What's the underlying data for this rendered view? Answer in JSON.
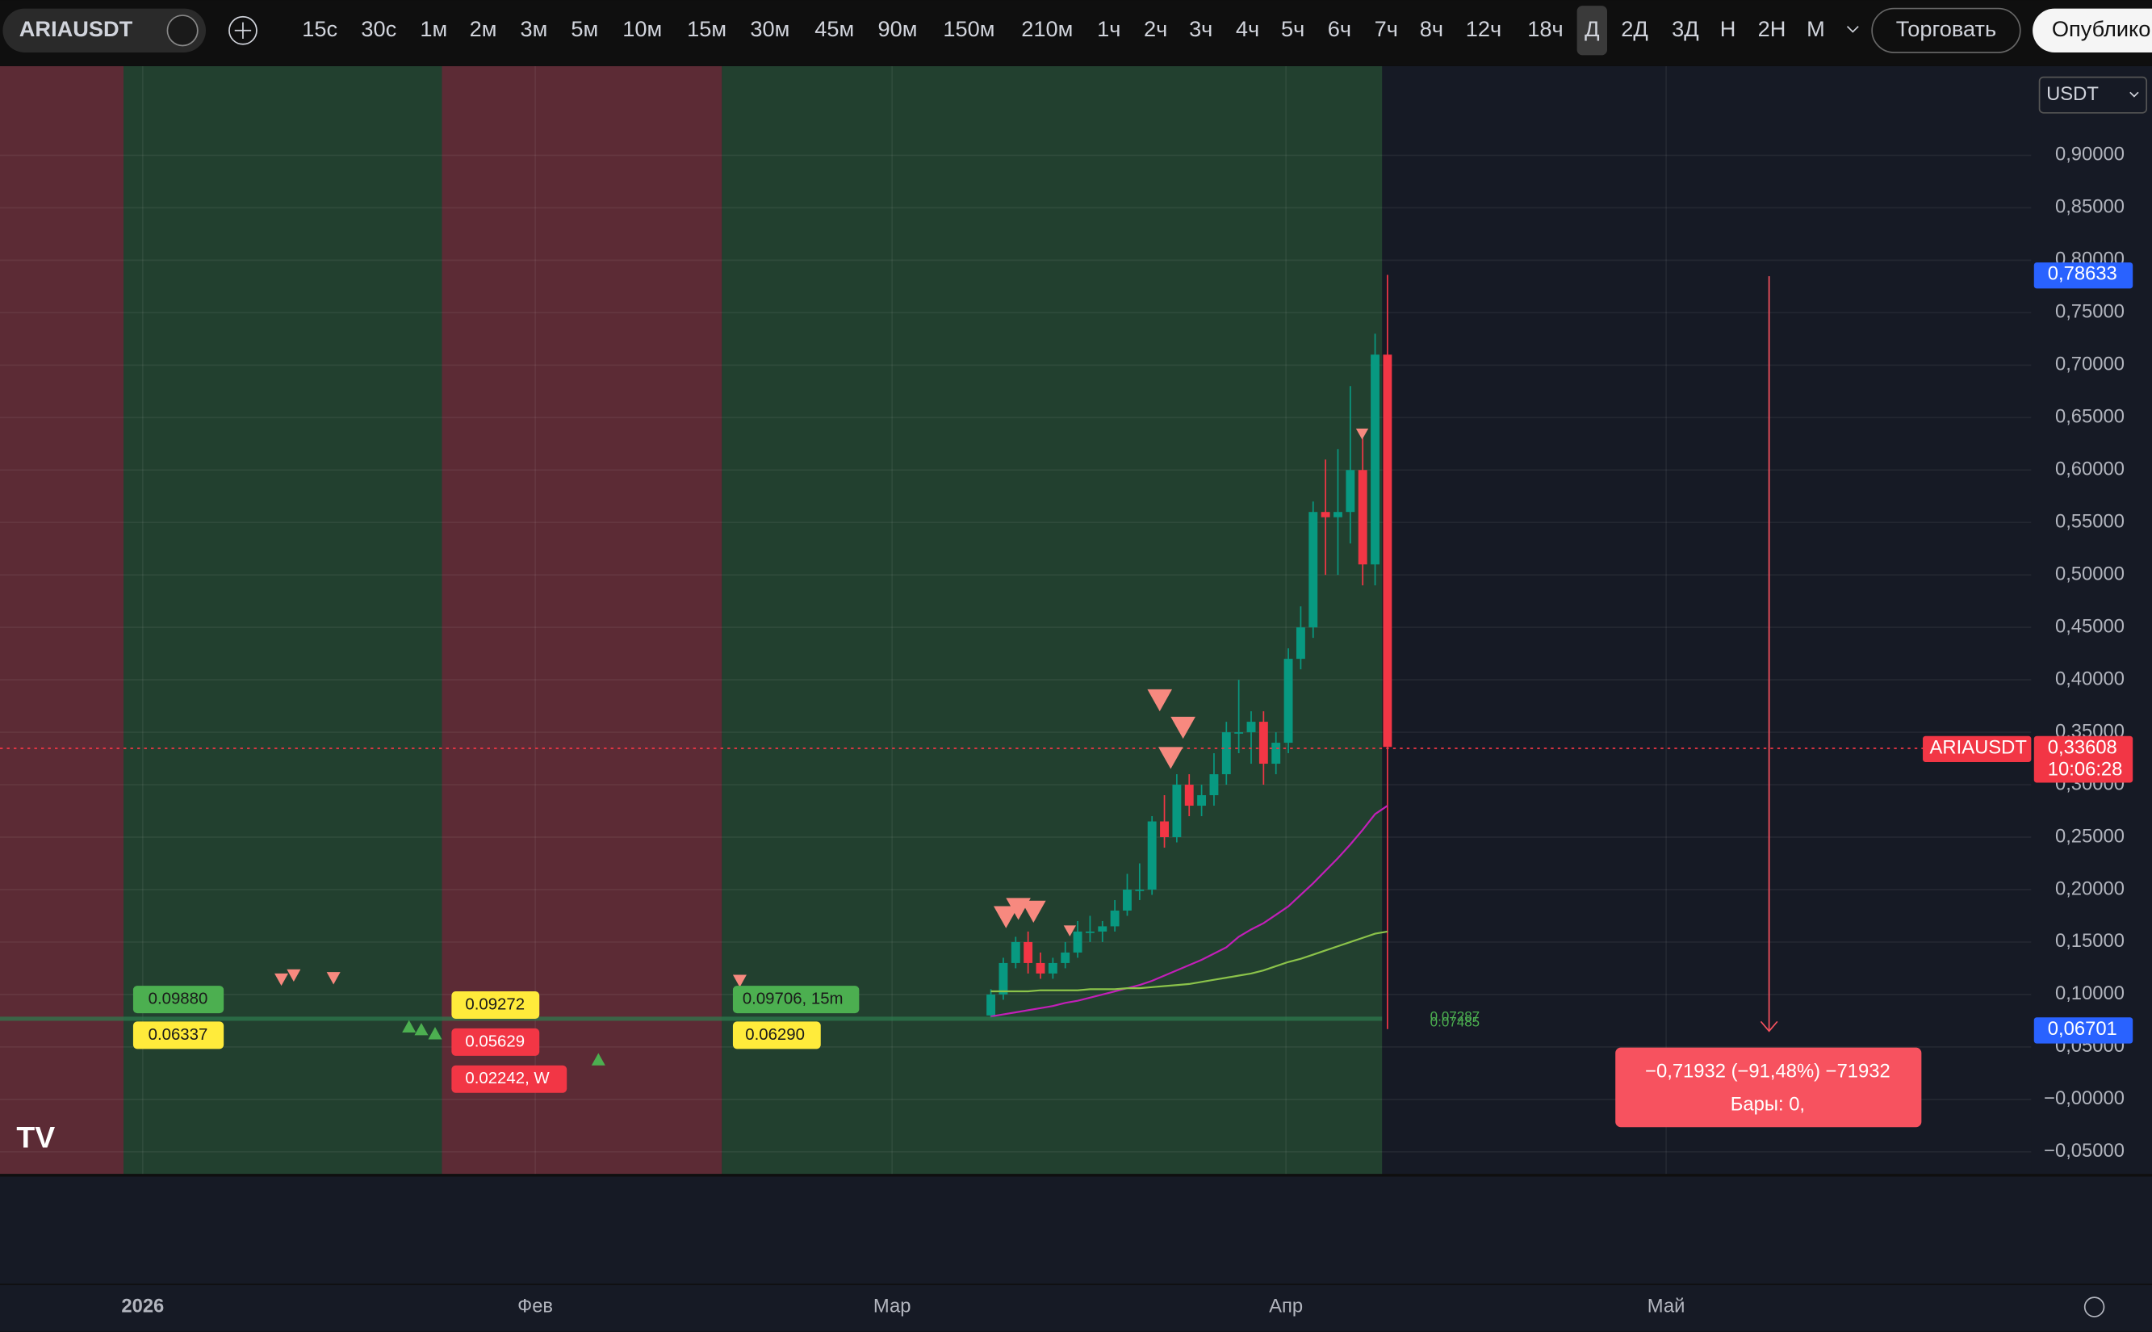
{
  "toolbar": {
    "symbol": "ARIAUSDT",
    "timeframes": [
      "15с",
      "30с",
      "1м",
      "2м",
      "3м",
      "5м",
      "10м",
      "15м",
      "30м",
      "45м",
      "90м",
      "150м",
      "210м",
      "1ч",
      "2ч",
      "3ч",
      "4ч",
      "5ч",
      "6ч",
      "7ч",
      "8ч",
      "12ч",
      "18ч",
      "Д",
      "2Д",
      "3Д",
      "Н",
      "2Н",
      "М"
    ],
    "trade": "Торговать",
    "publish": "Опублико"
  },
  "chart": {
    "currency": "USDT",
    "ylim": [
      -0.071,
      0.985
    ],
    "price_ticks": [
      {
        "value": 0.9,
        "label": "0,90000"
      },
      {
        "value": 0.85,
        "label": "0,85000"
      },
      {
        "value": 0.8,
        "label": "0,80000"
      },
      {
        "value": 0.75,
        "label": "0,75000"
      },
      {
        "value": 0.7,
        "label": "0,70000"
      },
      {
        "value": 0.65,
        "label": "0,65000"
      },
      {
        "value": 0.6,
        "label": "0,60000"
      },
      {
        "value": 0.55,
        "label": "0,55000"
      },
      {
        "value": 0.5,
        "label": "0,50000"
      },
      {
        "value": 0.45,
        "label": "0,45000"
      },
      {
        "value": 0.4,
        "label": "0,40000"
      },
      {
        "value": 0.35,
        "label": "0,35000"
      },
      {
        "value": 0.3,
        "label": "0,30000"
      },
      {
        "value": 0.25,
        "label": "0,25000"
      },
      {
        "value": 0.2,
        "label": "0,20000"
      },
      {
        "value": 0.15,
        "label": "0,15000"
      },
      {
        "value": 0.1,
        "label": "0,10000"
      },
      {
        "value": 0.05,
        "label": "0,05000"
      },
      {
        "value": 0,
        "label": "−0,00000"
      },
      {
        "value": -0.05,
        "label": "−0,05000"
      }
    ],
    "time_labels": [
      "2026",
      "Фев",
      "Мар",
      "Апр",
      "Май"
    ],
    "candles": [
      [
        0.08,
        0.105,
        0.078,
        0.1
      ],
      [
        0.1,
        0.135,
        0.095,
        0.13
      ],
      [
        0.13,
        0.155,
        0.125,
        0.15
      ],
      [
        0.15,
        0.16,
        0.12,
        0.13
      ],
      [
        0.13,
        0.14,
        0.115,
        0.12
      ],
      [
        0.12,
        0.135,
        0.115,
        0.13
      ],
      [
        0.13,
        0.15,
        0.125,
        0.14
      ],
      [
        0.14,
        0.17,
        0.135,
        0.16
      ],
      [
        0.16,
        0.175,
        0.15,
        0.16
      ],
      [
        0.16,
        0.17,
        0.15,
        0.165
      ],
      [
        0.165,
        0.19,
        0.16,
        0.18
      ],
      [
        0.18,
        0.215,
        0.175,
        0.2
      ],
      [
        0.2,
        0.225,
        0.19,
        0.2
      ],
      [
        0.2,
        0.27,
        0.195,
        0.265
      ],
      [
        0.265,
        0.29,
        0.24,
        0.25
      ],
      [
        0.25,
        0.31,
        0.245,
        0.3
      ],
      [
        0.3,
        0.31,
        0.27,
        0.28
      ],
      [
        0.28,
        0.3,
        0.27,
        0.29
      ],
      [
        0.29,
        0.33,
        0.28,
        0.31
      ],
      [
        0.31,
        0.36,
        0.3,
        0.35
      ],
      [
        0.35,
        0.4,
        0.33,
        0.35
      ],
      [
        0.35,
        0.37,
        0.32,
        0.36
      ],
      [
        0.36,
        0.37,
        0.3,
        0.32
      ],
      [
        0.32,
        0.35,
        0.31,
        0.34
      ],
      [
        0.34,
        0.43,
        0.33,
        0.42
      ],
      [
        0.42,
        0.47,
        0.41,
        0.45
      ],
      [
        0.45,
        0.57,
        0.44,
        0.56
      ],
      [
        0.56,
        0.61,
        0.5,
        0.555
      ],
      [
        0.555,
        0.62,
        0.5,
        0.56
      ],
      [
        0.56,
        0.68,
        0.53,
        0.6
      ],
      [
        0.6,
        0.63,
        0.49,
        0.51
      ],
      [
        0.51,
        0.73,
        0.49,
        0.71
      ],
      [
        0.71,
        0.786,
        0.067,
        0.336
      ]
    ],
    "ma_slow": [
      0.079,
      0.081,
      0.083,
      0.085,
      0.087,
      0.089,
      0.092,
      0.094,
      0.097,
      0.1,
      0.103,
      0.106,
      0.109,
      0.113,
      0.118,
      0.123,
      0.128,
      0.133,
      0.139,
      0.145,
      0.155,
      0.162,
      0.168,
      0.176,
      0.184,
      0.195,
      0.206,
      0.218,
      0.23,
      0.243,
      0.257,
      0.272,
      0.28
    ],
    "ma_fast": [
      0.103,
      0.103,
      0.103,
      0.103,
      0.104,
      0.104,
      0.104,
      0.104,
      0.105,
      0.105,
      0.105,
      0.106,
      0.106,
      0.107,
      0.108,
      0.109,
      0.11,
      0.112,
      0.114,
      0.116,
      0.118,
      0.12,
      0.123,
      0.127,
      0.131,
      0.134,
      0.138,
      0.142,
      0.146,
      0.15,
      0.154,
      0.158,
      0.16
    ],
    "markers": [
      "0.09880",
      "0.06337",
      "0.09272",
      "0.05629",
      "0.02242, W",
      "0.09706, 15m",
      "0.06290",
      "0.07287",
      "0.07485"
    ],
    "price_labels": {
      "high": "0,78633",
      "symbol": "ARIAUSDT",
      "last": "0,33608",
      "countdown": "10:06:28",
      "low": "0,06701"
    },
    "measure": {
      "change": "−0,71932 (−91,48%) −71932",
      "bars": "Бары: 0,"
    }
  }
}
